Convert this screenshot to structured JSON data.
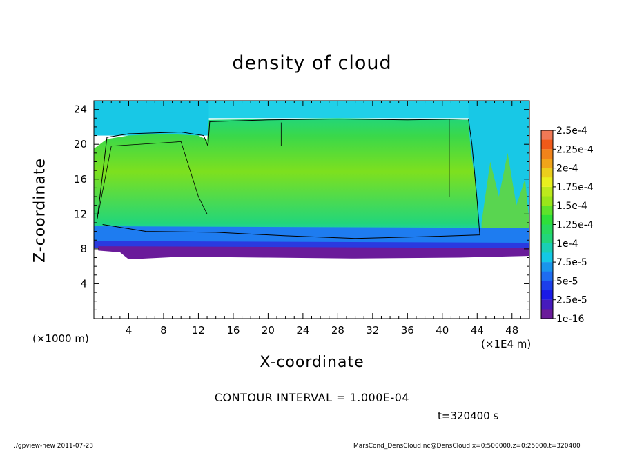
{
  "chart_data": {
    "type": "heatmap",
    "title": "density of cloud",
    "xlabel": "X-coordinate",
    "ylabel": "Z-coordinate",
    "x_unit": "(×1E4 m)",
    "y_unit": "(×1000 m)",
    "xlim": [
      0,
      50
    ],
    "ylim": [
      0,
      25
    ],
    "x_ticks": [
      4,
      8,
      12,
      16,
      20,
      24,
      28,
      32,
      36,
      40,
      44,
      48
    ],
    "y_ticks": [
      4,
      8,
      12,
      16,
      20,
      24
    ],
    "colorbar": {
      "labels": [
        "1e-16",
        "2.5e-5",
        "5e-5",
        "7.5e-5",
        "1e-4",
        "1.25e-4",
        "1.5e-4",
        "1.75e-4",
        "2e-4",
        "2.25e-4",
        "2.5e-4"
      ],
      "colors": [
        "#6a1b9a",
        "#1a1ae6",
        "#1e6cf0",
        "#14c8e6",
        "#22d67a",
        "#2ee03a",
        "#9ae61a",
        "#e8f01e",
        "#f0a41a",
        "#f05a1a",
        "#f0a0a0"
      ]
    },
    "contour_interval_text": "CONTOUR INTERVAL = 1.000E-04",
    "time_text": "t=320400 s",
    "cloud_layer": {
      "bottom_z": 7,
      "top_z_left": 21,
      "top_z_middle": 23,
      "mid_step_x": 13.2,
      "right_break_x": 43
    }
  },
  "footer": {
    "left": "./gpview-new   2011-07-23",
    "right": "MarsCond_DensCloud.nc@DensCloud,x=0:500000,z=0:25000,t=320400"
  }
}
